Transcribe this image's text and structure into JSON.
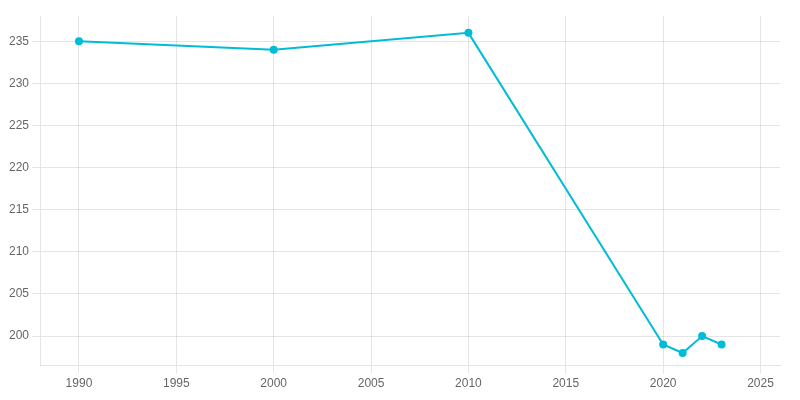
{
  "chart_data": {
    "type": "line",
    "x": [
      1990,
      2000,
      2010,
      2020,
      2021,
      2022,
      2023
    ],
    "values": [
      235,
      234,
      236,
      199,
      198,
      200,
      199
    ],
    "color": "#00bcd4",
    "marker": "circle",
    "xlim": [
      1988,
      2026
    ],
    "ylim": [
      196.5,
      238
    ],
    "xticks": [
      1990,
      1995,
      2000,
      2005,
      2010,
      2015,
      2020,
      2025
    ],
    "yticks": [
      200,
      205,
      210,
      215,
      220,
      225,
      230,
      235
    ],
    "grid": true
  }
}
